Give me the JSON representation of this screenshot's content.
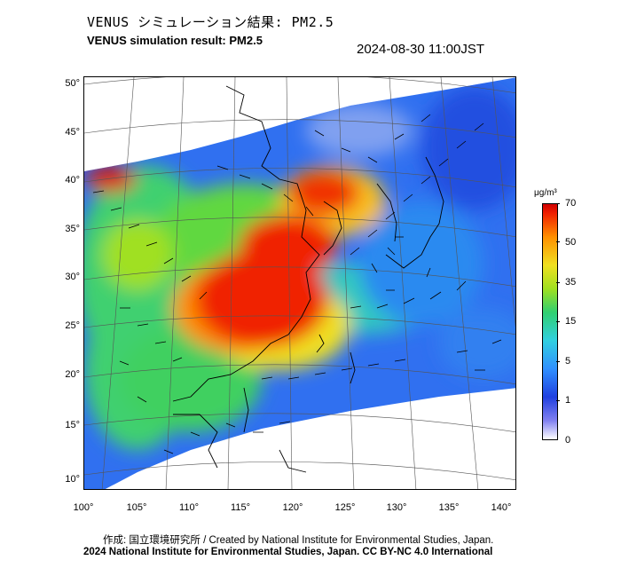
{
  "title_jp": "VENUS シミュレーション結果: PM2.5",
  "title_en": "VENUS simulation result: PM2.5",
  "timestamp": "2024-08-30 11:00JST",
  "map": {
    "y_ticks": [
      "50°",
      "45°",
      "40°",
      "35°",
      "30°",
      "25°",
      "20°",
      "15°",
      "10°"
    ],
    "x_ticks": [
      "100°",
      "105°",
      "110°",
      "115°",
      "120°",
      "125°",
      "130°",
      "135°",
      "140°"
    ]
  },
  "colorbar": {
    "unit": "μg/m³",
    "labels": [
      "70",
      "50",
      "35",
      "15",
      "5",
      "1",
      "0"
    ]
  },
  "credit": "作成: 国立環境研究所 / Created by National Institute for Environmental Studies, Japan.",
  "copyright": "2024 National Institute for Environmental Studies, Japan. CC BY-NC 4.0 International",
  "colors": {
    "low": "#2040e0",
    "mid": "#30d070",
    "high": "#f02000",
    "frame": "#000000"
  }
}
